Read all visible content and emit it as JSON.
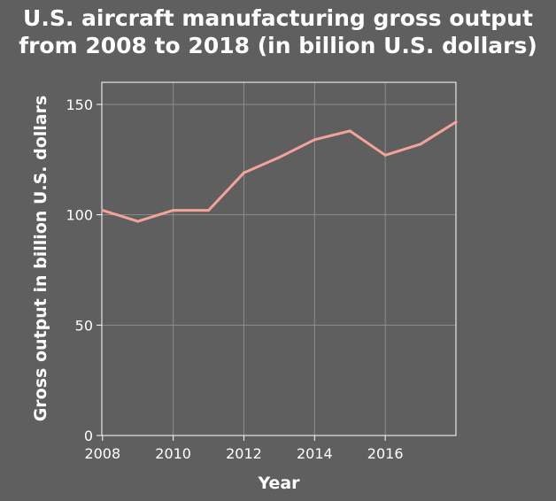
{
  "chart_data": {
    "type": "line",
    "title_lines": [
      "U.S. aircraft manufacturing gross output",
      "from 2008 to 2018 (in billion U.S. dollars)"
    ],
    "xlabel": "Year",
    "ylabel": "Gross output in billion U.S. dollars",
    "xlim": [
      2007.98,
      2018
    ],
    "ylim": [
      0,
      160
    ],
    "x_ticks": [
      2008,
      2010,
      2012,
      2014,
      2016
    ],
    "x_tick_labels": [
      "2008",
      "2010",
      "2012",
      "2014",
      "2016"
    ],
    "y_ticks": [
      0,
      50,
      100,
      150
    ],
    "y_tick_labels": [
      "0",
      "50",
      "100",
      "150"
    ],
    "grid": true,
    "line_color": "#f4a39a",
    "background_color": "#5f5f5f",
    "grid_color": "#8c8c8c",
    "series": [
      {
        "x": [
          2008,
          2009,
          2010,
          2011,
          2012,
          2013,
          2014,
          2015,
          2016,
          2017,
          2018
        ],
        "values": [
          102,
          97,
          102,
          102,
          119,
          126,
          134,
          138,
          127,
          132,
          142
        ]
      }
    ]
  }
}
